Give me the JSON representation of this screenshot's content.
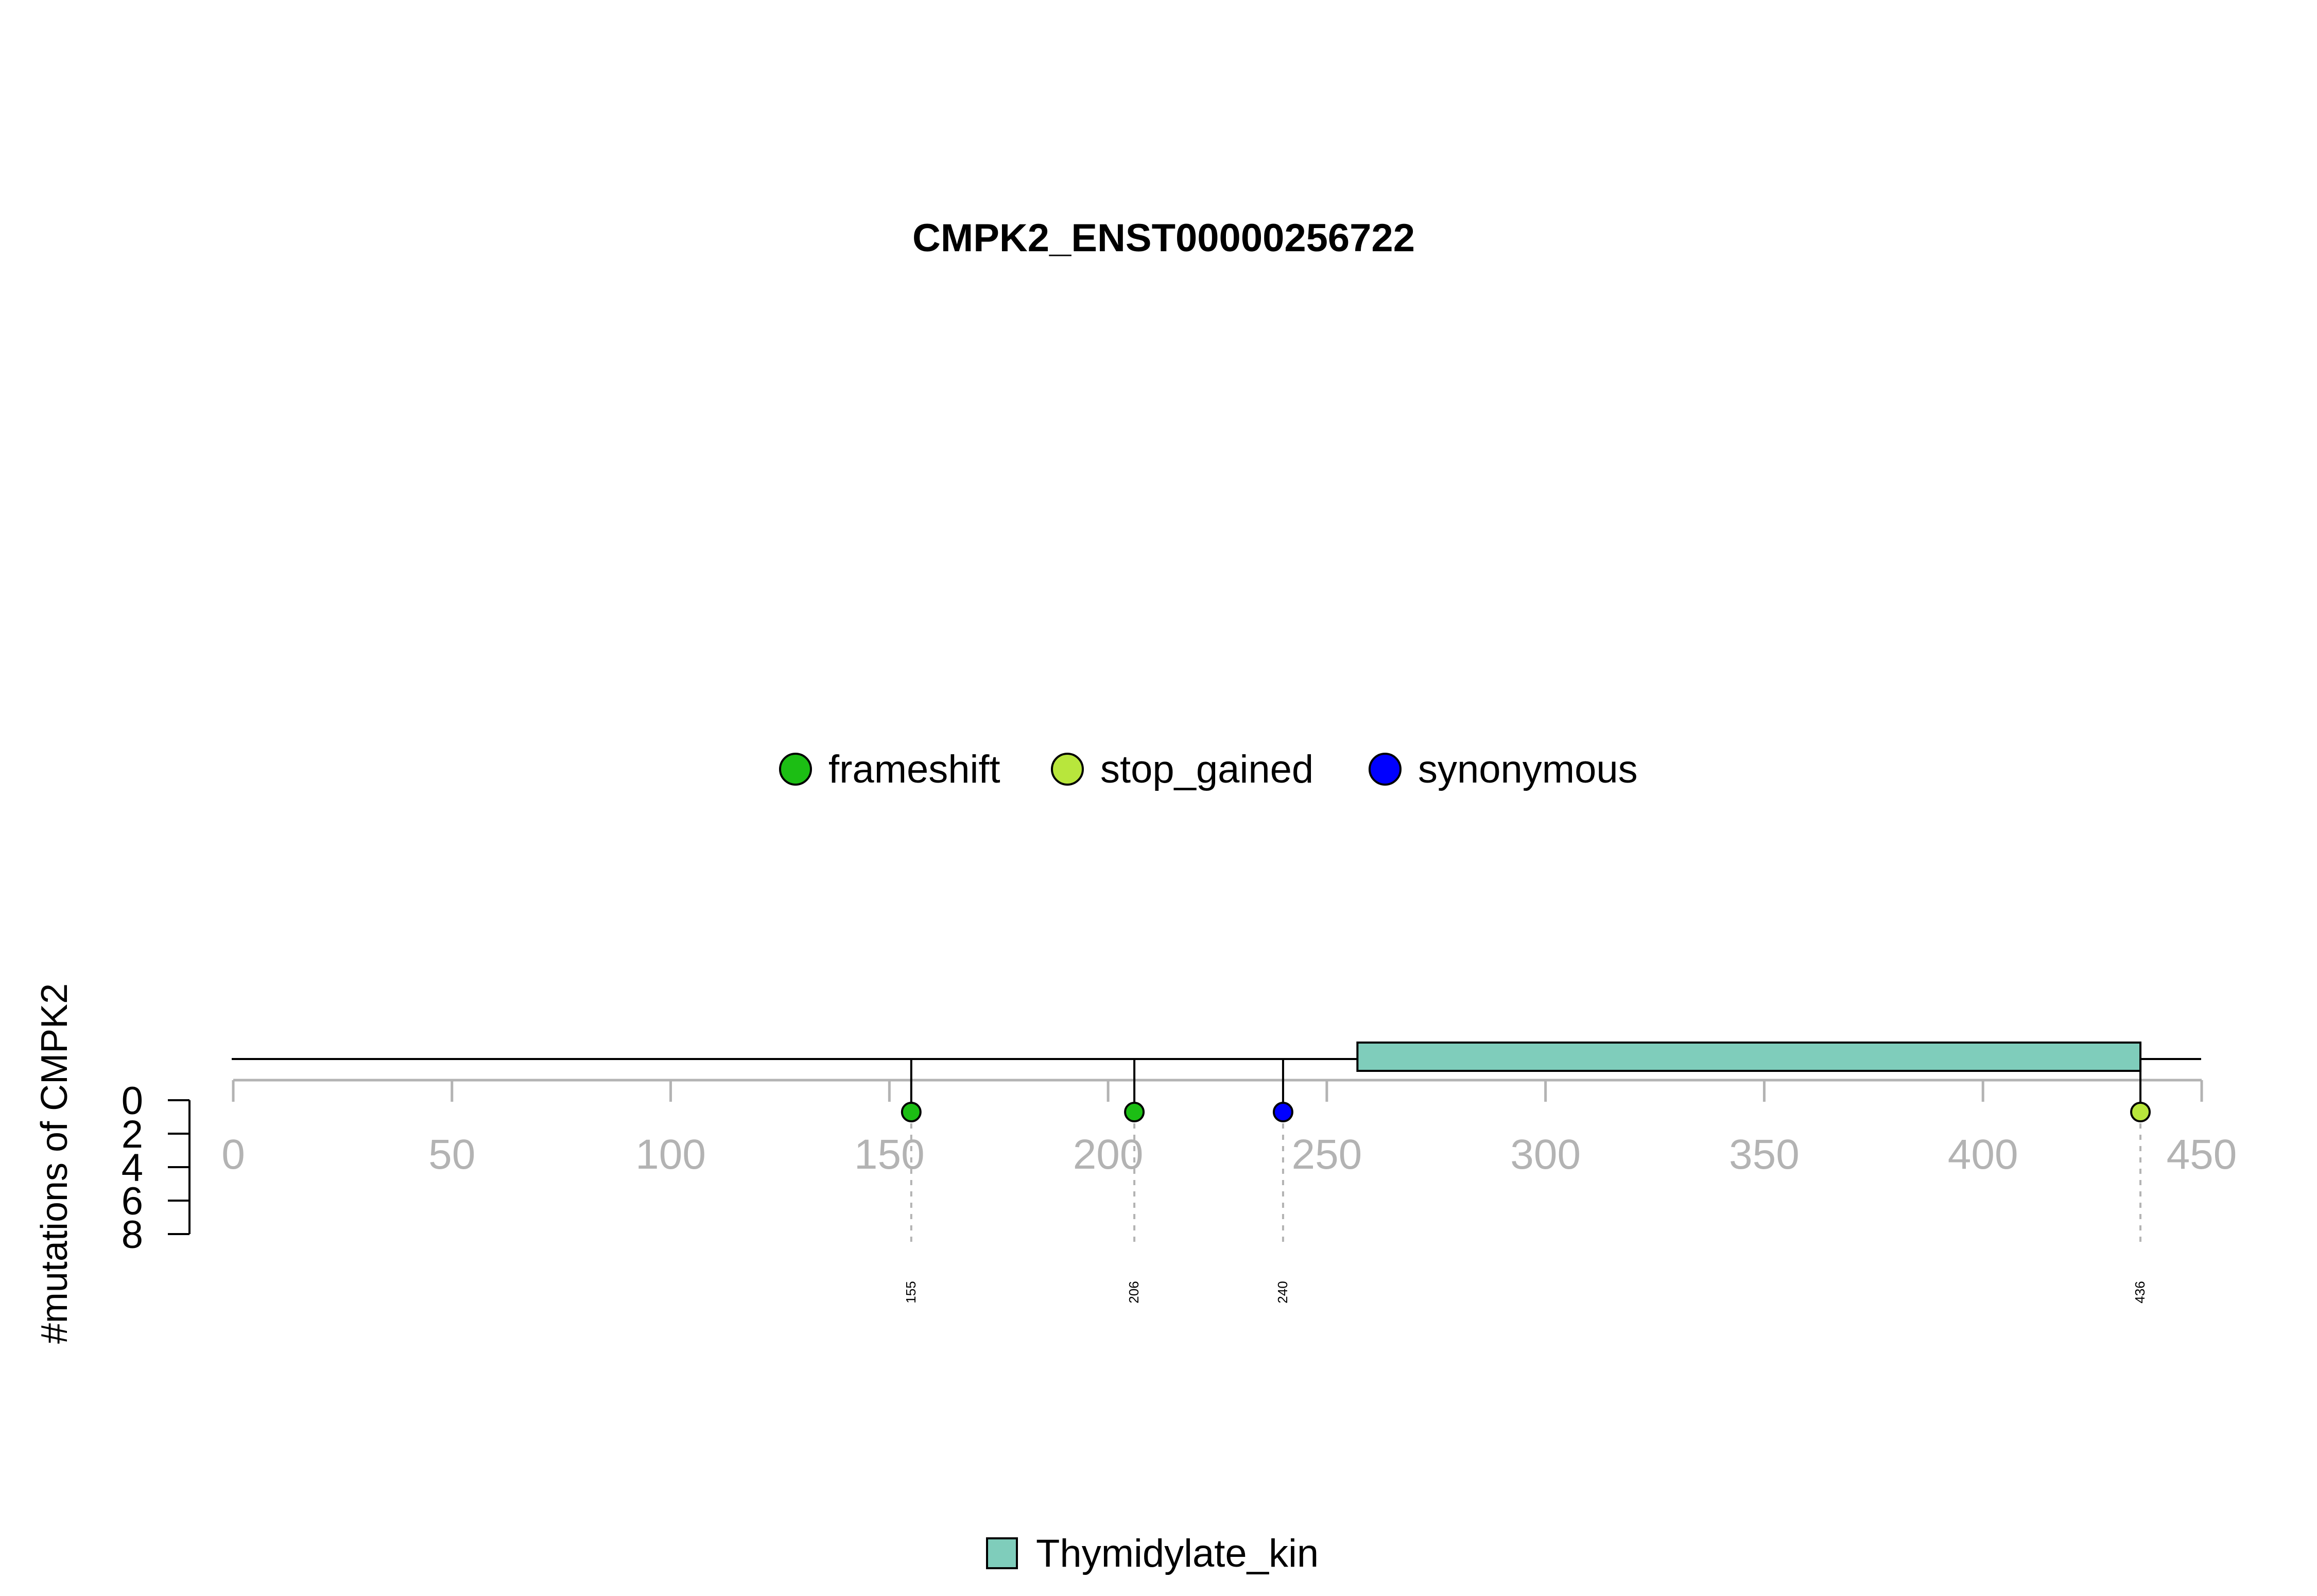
{
  "chart_data": {
    "type": "lollipop",
    "title": "CMPK2_ENST00000256722",
    "ylabel": "#mutations of CMPK2",
    "xlim": [
      0,
      450
    ],
    "x_ticks": [
      0,
      50,
      100,
      150,
      200,
      250,
      300,
      350,
      400,
      450
    ],
    "ylim": [
      0,
      8
    ],
    "y_ticks": [
      0,
      2,
      4,
      6,
      8
    ],
    "mutation_legend": [
      {
        "label": "frameshift",
        "color": "#1cbe14"
      },
      {
        "label": "stop_gained",
        "color": "#b8e63c"
      },
      {
        "label": "synonymous",
        "color": "#0000ff"
      }
    ],
    "mutations": [
      {
        "position": 155,
        "count": 1,
        "type": "frameshift",
        "label": "155"
      },
      {
        "position": 206,
        "count": 1,
        "type": "frameshift",
        "label": "206"
      },
      {
        "position": 240,
        "count": 1,
        "type": "synonymous",
        "label": "240"
      },
      {
        "position": 436,
        "count": 1,
        "type": "stop_gained",
        "label": "436"
      }
    ],
    "domains": [
      {
        "name": "Thymidylate_kin",
        "start": 257,
        "end": 436,
        "color": "#7fcdbb"
      }
    ],
    "domain_legend": [
      {
        "label": "Thymidylate_kin",
        "color": "#7fcdbb"
      }
    ]
  }
}
